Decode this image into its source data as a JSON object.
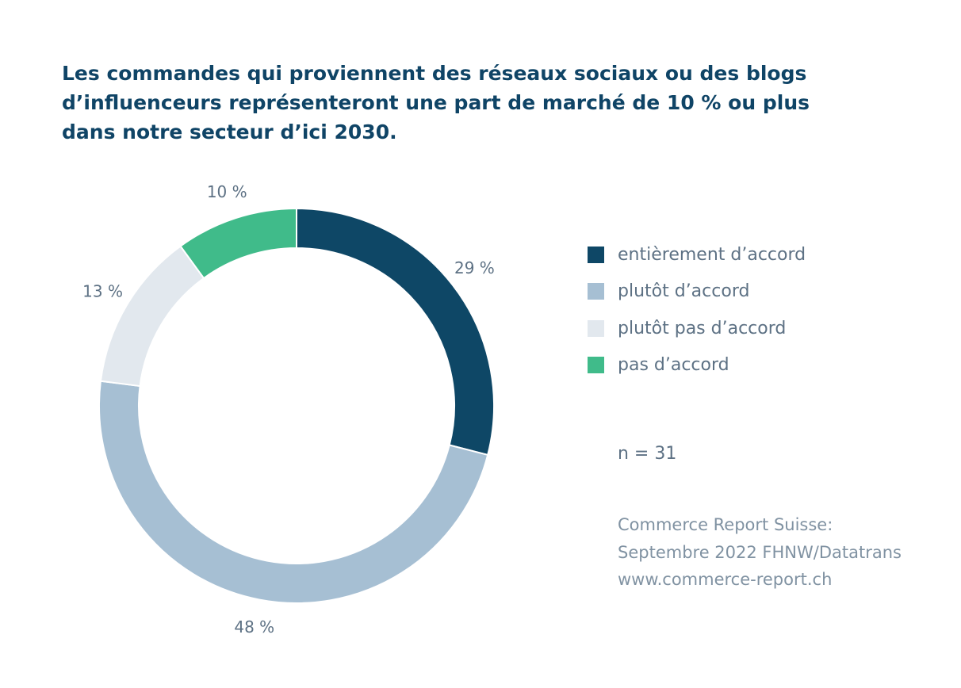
{
  "title_lines": [
    "Les commandes qui proviennent des réseaux sociaux ou des blogs",
    "d’influenceurs représenteront une part de marché de 10 % ou plus",
    "dans notre secteur d’ici 2030."
  ],
  "chart_data": {
    "type": "pie",
    "style": "donut",
    "title": "Les commandes qui proviennent des réseaux sociaux ou des blogs d’influenceurs représenteront une part de marché de 10 % ou plus dans notre secteur d’ici 2030.",
    "categories": [
      "entièrement d’accord",
      "plutôt d’accord",
      "plutôt pas d’accord",
      "pas d’accord"
    ],
    "values": [
      29,
      48,
      13,
      10
    ],
    "value_labels": [
      "29 %",
      "48 %",
      "13 %",
      "10 %"
    ],
    "colors": [
      "#0e4766",
      "#a6bfd3",
      "#e2e8ee",
      "#40bb8a"
    ],
    "start": "top",
    "direction": "clockwise",
    "legend_position": "right"
  },
  "legend": {
    "items": [
      {
        "label": "entièrement d’accord",
        "color": "#0e4766"
      },
      {
        "label": "plutôt d’accord",
        "color": "#a6bfd3"
      },
      {
        "label": "plutôt pas d’accord",
        "color": "#e2e8ee"
      },
      {
        "label": "pas d’accord",
        "color": "#40bb8a"
      }
    ]
  },
  "sample_size": "n = 31",
  "source_lines": [
    "Commerce Report Suisse:",
    "Septembre 2022 FHNW/Datatrans",
    "www.commerce-report.ch"
  ]
}
